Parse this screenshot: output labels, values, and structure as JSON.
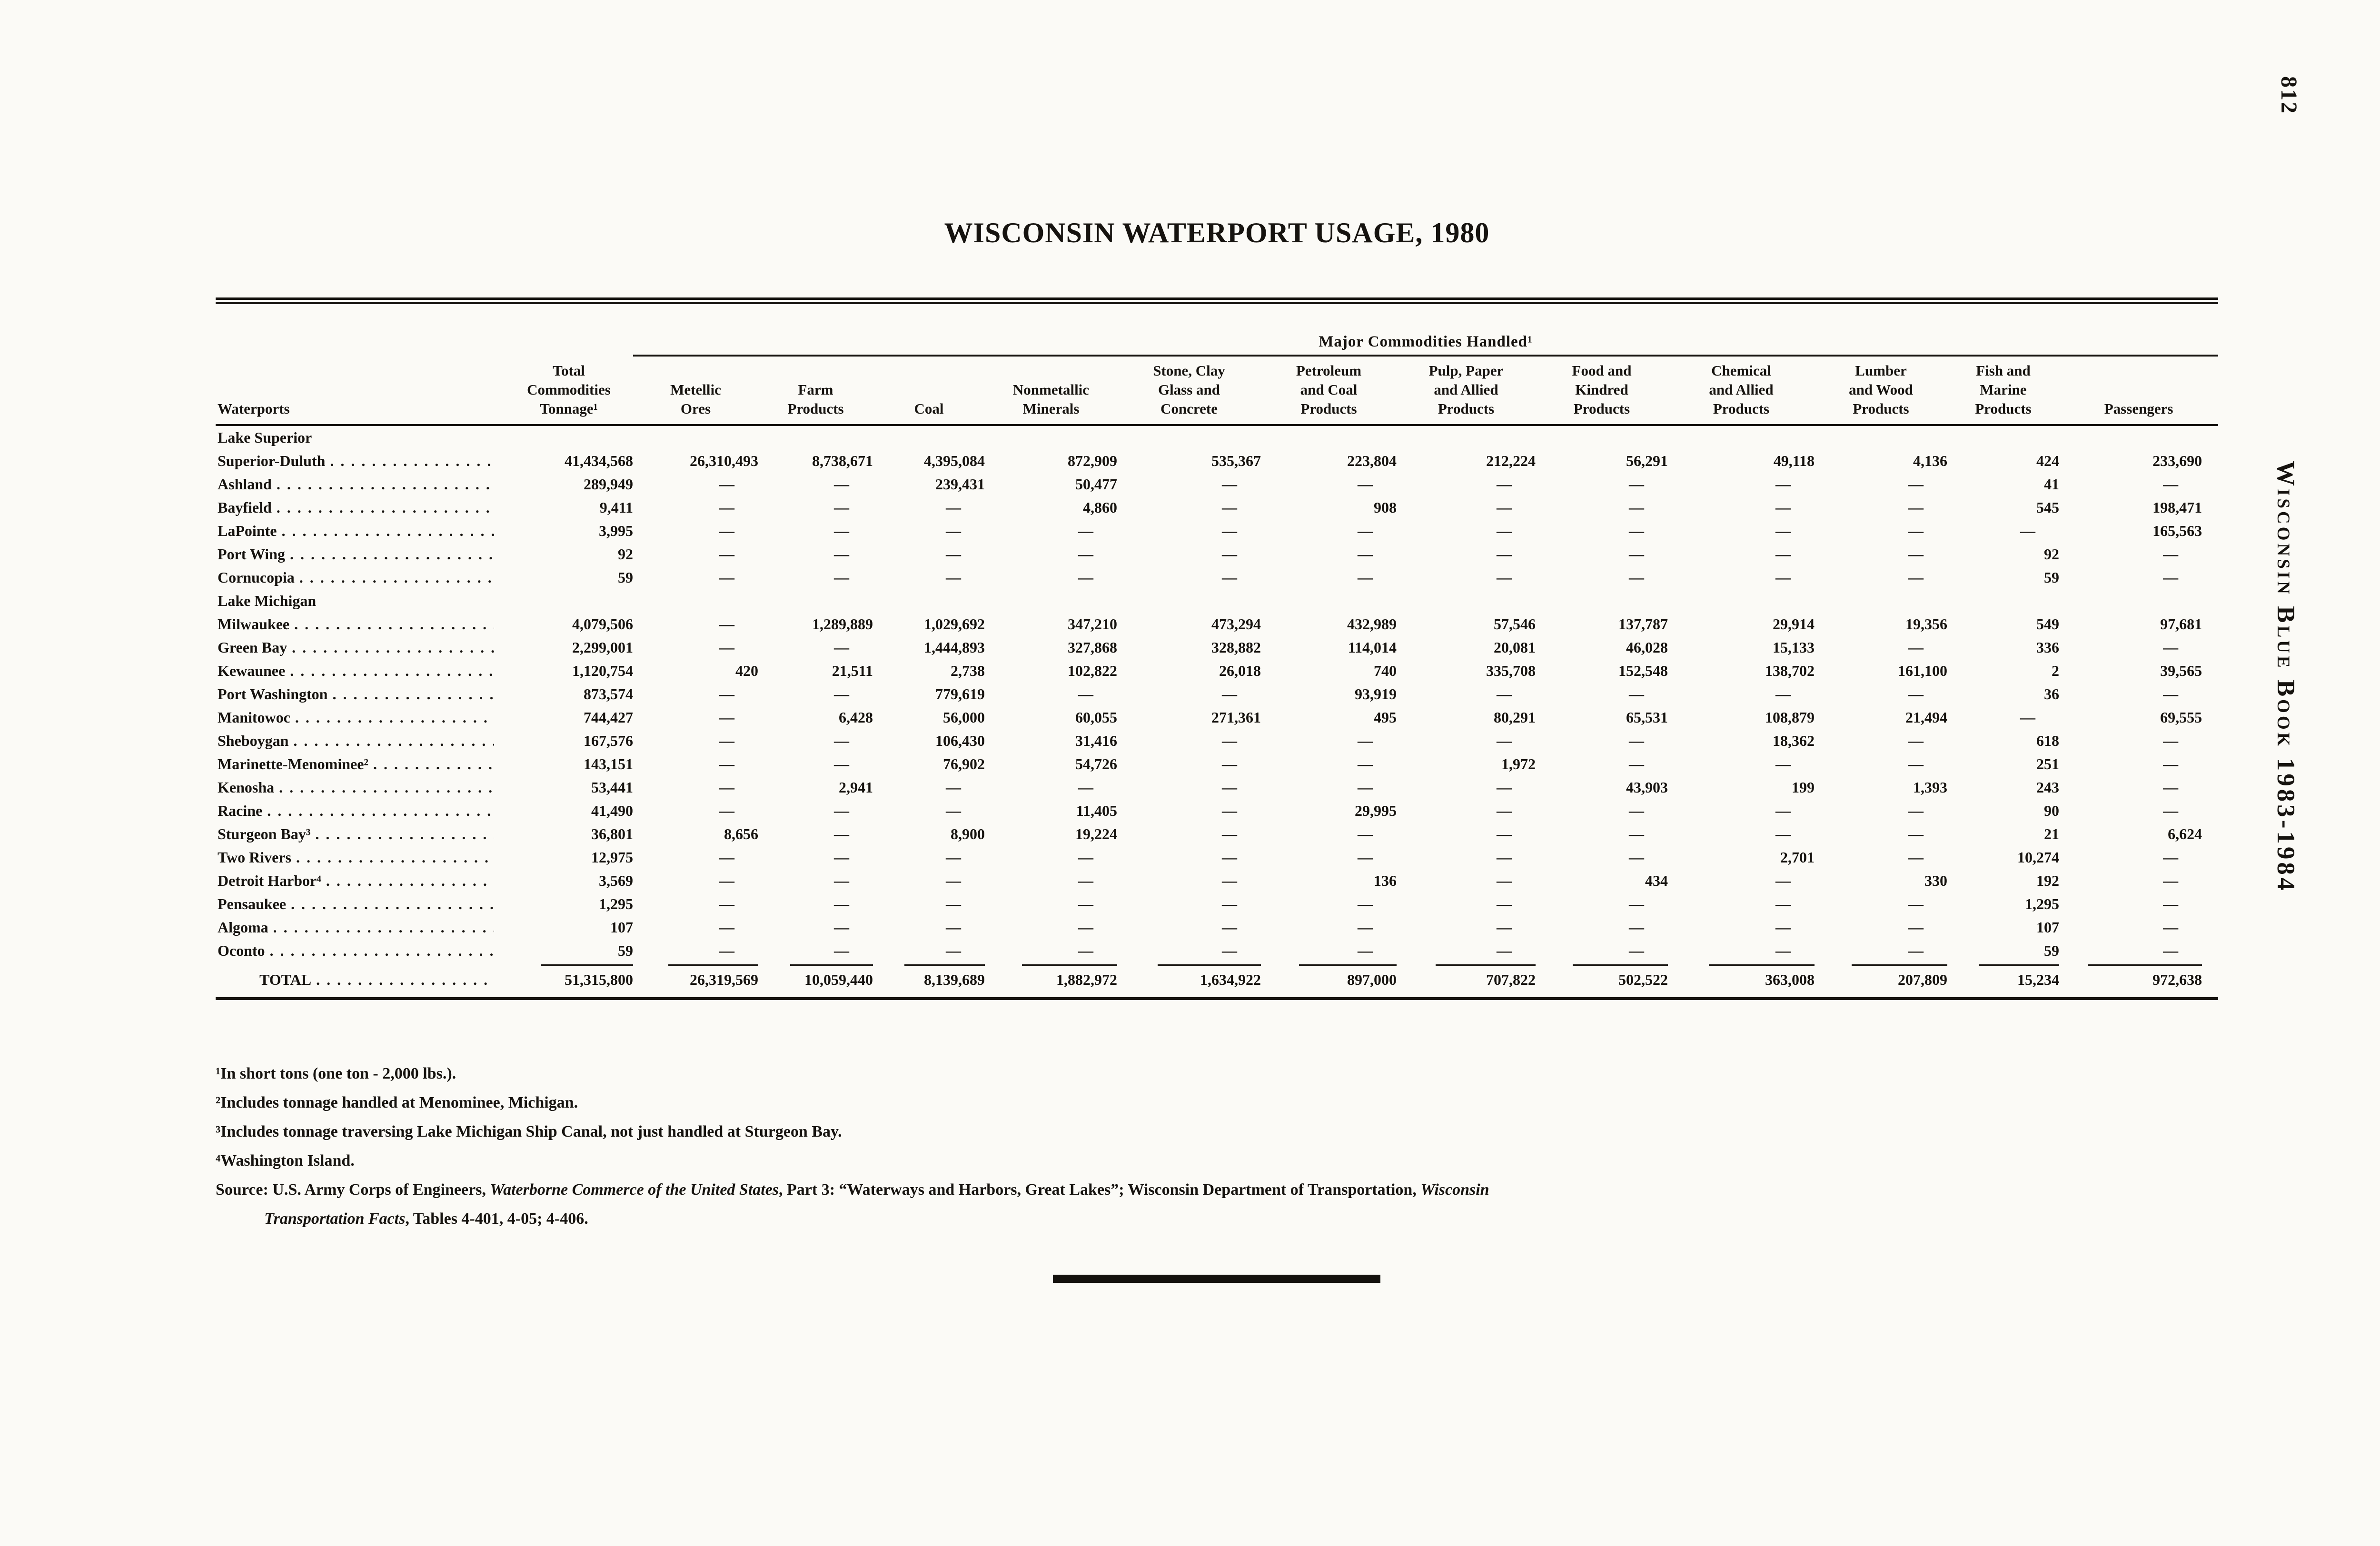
{
  "page": {
    "number": "812",
    "side_title": "Wisconsin Blue Book 1983-1984"
  },
  "title": "WISCONSIN WATERPORT USAGE, 1980",
  "table": {
    "spanner": "Major Commodities Handled¹",
    "columns": [
      "Waterports",
      "Total\nCommodities\nTonnage¹",
      "Metellic\nOres",
      "Farm\nProducts",
      "Coal",
      "Nonmetallic\nMinerals",
      "Stone, Clay\nGlass and\nConcrete",
      "Petroleum\nand Coal\nProducts",
      "Pulp, Paper\nand Allied\nProducts",
      "Food and\nKindred\nProducts",
      "Chemical\nand Allied\nProducts",
      "Lumber\nand Wood\nProducts",
      "Fish and\nMarine\nProducts",
      "Passengers"
    ],
    "sections": [
      {
        "label": "Lake Superior",
        "rows": [
          {
            "name": "Superior-Duluth",
            "values": [
              "41,434,568",
              "26,310,493",
              "8,738,671",
              "4,395,084",
              "872,909",
              "535,367",
              "223,804",
              "212,224",
              "56,291",
              "49,118",
              "4,136",
              "424",
              "233,690"
            ]
          },
          {
            "name": "Ashland",
            "values": [
              "289,949",
              "—",
              "—",
              "239,431",
              "50,477",
              "—",
              "—",
              "—",
              "—",
              "—",
              "—",
              "41",
              "—"
            ]
          },
          {
            "name": "Bayfield",
            "values": [
              "9,411",
              "—",
              "—",
              "—",
              "4,860",
              "—",
              "908",
              "—",
              "—",
              "—",
              "—",
              "545",
              "198,471"
            ]
          },
          {
            "name": "LaPointe",
            "values": [
              "3,995",
              "—",
              "—",
              "—",
              "—",
              "—",
              "—",
              "—",
              "—",
              "—",
              "—",
              "—",
              "165,563"
            ]
          },
          {
            "name": "Port Wing",
            "values": [
              "92",
              "—",
              "—",
              "—",
              "—",
              "—",
              "—",
              "—",
              "—",
              "—",
              "—",
              "92",
              "—"
            ]
          },
          {
            "name": "Cornucopia",
            "values": [
              "59",
              "—",
              "—",
              "—",
              "—",
              "—",
              "—",
              "—",
              "—",
              "—",
              "—",
              "59",
              "—"
            ]
          }
        ]
      },
      {
        "label": "Lake Michigan",
        "rows": [
          {
            "name": "Milwaukee",
            "values": [
              "4,079,506",
              "—",
              "1,289,889",
              "1,029,692",
              "347,210",
              "473,294",
              "432,989",
              "57,546",
              "137,787",
              "29,914",
              "19,356",
              "549",
              "97,681"
            ]
          },
          {
            "name": "Green Bay",
            "values": [
              "2,299,001",
              "—",
              "—",
              "1,444,893",
              "327,868",
              "328,882",
              "114,014",
              "20,081",
              "46,028",
              "15,133",
              "—",
              "336",
              "—"
            ]
          },
          {
            "name": "Kewaunee",
            "values": [
              "1,120,754",
              "420",
              "21,511",
              "2,738",
              "102,822",
              "26,018",
              "740",
              "335,708",
              "152,548",
              "138,702",
              "161,100",
              "2",
              "39,565"
            ]
          },
          {
            "name": "Port Washington",
            "values": [
              "873,574",
              "—",
              "—",
              "779,619",
              "—",
              "—",
              "93,919",
              "—",
              "—",
              "—",
              "—",
              "36",
              "—"
            ]
          },
          {
            "name": "Manitowoc",
            "values": [
              "744,427",
              "—",
              "6,428",
              "56,000",
              "60,055",
              "271,361",
              "495",
              "80,291",
              "65,531",
              "108,879",
              "21,494",
              "—",
              "69,555"
            ]
          },
          {
            "name": "Sheboygan",
            "values": [
              "167,576",
              "—",
              "—",
              "106,430",
              "31,416",
              "—",
              "—",
              "—",
              "—",
              "18,362",
              "—",
              "618",
              "—"
            ]
          },
          {
            "name": "Marinette-Menominee²",
            "values": [
              "143,151",
              "—",
              "—",
              "76,902",
              "54,726",
              "—",
              "—",
              "1,972",
              "—",
              "—",
              "—",
              "251",
              "—"
            ]
          },
          {
            "name": "Kenosha",
            "values": [
              "53,441",
              "—",
              "2,941",
              "—",
              "—",
              "—",
              "—",
              "—",
              "43,903",
              "199",
              "1,393",
              "243",
              "—"
            ]
          },
          {
            "name": "Racine",
            "values": [
              "41,490",
              "—",
              "—",
              "—",
              "11,405",
              "—",
              "29,995",
              "—",
              "—",
              "—",
              "—",
              "90",
              "—"
            ]
          },
          {
            "name": "Sturgeon Bay³",
            "values": [
              "36,801",
              "8,656",
              "—",
              "8,900",
              "19,224",
              "—",
              "—",
              "—",
              "—",
              "—",
              "—",
              "21",
              "6,624"
            ]
          },
          {
            "name": "Two Rivers",
            "values": [
              "12,975",
              "—",
              "—",
              "—",
              "—",
              "—",
              "—",
              "—",
              "—",
              "2,701",
              "—",
              "10,274",
              "—"
            ]
          },
          {
            "name": "Detroit Harbor⁴",
            "values": [
              "3,569",
              "—",
              "—",
              "—",
              "—",
              "—",
              "136",
              "—",
              "434",
              "—",
              "330",
              "192",
              "—"
            ]
          },
          {
            "name": "Pensaukee",
            "values": [
              "1,295",
              "—",
              "—",
              "—",
              "—",
              "—",
              "—",
              "—",
              "—",
              "—",
              "—",
              "1,295",
              "—"
            ]
          },
          {
            "name": "Algoma",
            "values": [
              "107",
              "—",
              "—",
              "—",
              "—",
              "—",
              "—",
              "—",
              "—",
              "—",
              "—",
              "107",
              "—"
            ]
          },
          {
            "name": "Oconto",
            "values": [
              "59",
              "—",
              "—",
              "—",
              "—",
              "—",
              "—",
              "—",
              "—",
              "—",
              "—",
              "59",
              "—"
            ]
          }
        ]
      }
    ],
    "total": {
      "name": "TOTAL",
      "values": [
        "51,315,800",
        "26,319,569",
        "10,059,440",
        "8,139,689",
        "1,882,972",
        "1,634,922",
        "897,000",
        "707,822",
        "502,522",
        "363,008",
        "207,809",
        "15,234",
        "972,638"
      ]
    }
  },
  "footnotes": [
    "¹In short tons (one ton - 2,000 lbs.).",
    "²Includes tonnage handled at Menominee, Michigan.",
    "³Includes tonnage traversing Lake Michigan Ship Canal, not just handled at Sturgeon Bay.",
    "⁴Washington Island."
  ],
  "source": {
    "line1_roman1": "Source: U.S. Army Corps of Engineers, ",
    "line1_italic1": "Waterborne Commerce of the United States",
    "line1_roman2": ", Part 3: “Waterways and Harbors, Great Lakes”; Wisconsin Department of Transportation, ",
    "line1_italic2": "Wisconsin",
    "line2_italic": "Transportation Facts",
    "line2_roman": ", Tables 4-401, 4-05; 4-406."
  }
}
